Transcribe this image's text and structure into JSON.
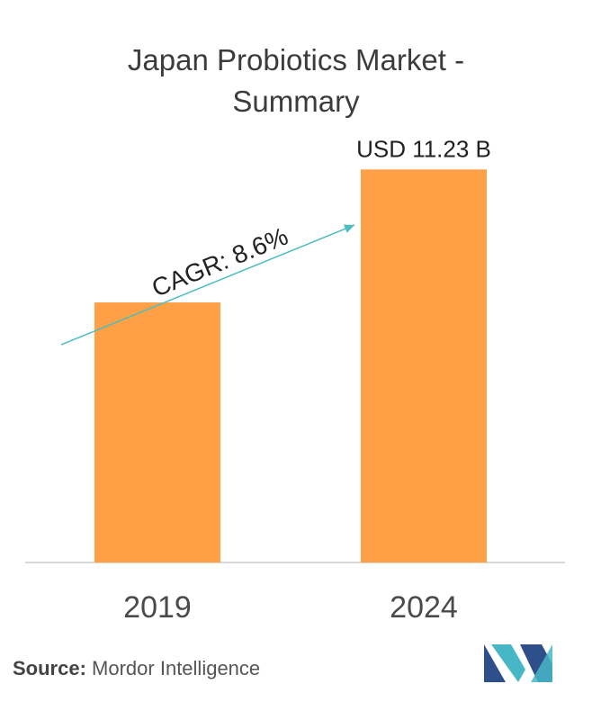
{
  "chart_data": {
    "type": "bar",
    "title_lines": [
      "Japan Probiotics Market -",
      "Summary"
    ],
    "categories": [
      "2019",
      "2024"
    ],
    "values": [
      7.43,
      11.23
    ],
    "ylim": [
      0,
      11.7
    ],
    "data_labels": [
      "",
      "USD 11.23 B"
    ],
    "annotation": "CAGR: 8.6%",
    "grid": false,
    "bar_color": "#ffa046",
    "arrow_color": "#4dbdc0",
    "axis_color": "#cccccc"
  },
  "source": {
    "label": "Source:",
    "text": "Mordor Intelligence"
  },
  "logo": {
    "icon": "mordor-intelligence-logo",
    "colors": [
      "#2e4f8a",
      "#47b7c6"
    ]
  }
}
